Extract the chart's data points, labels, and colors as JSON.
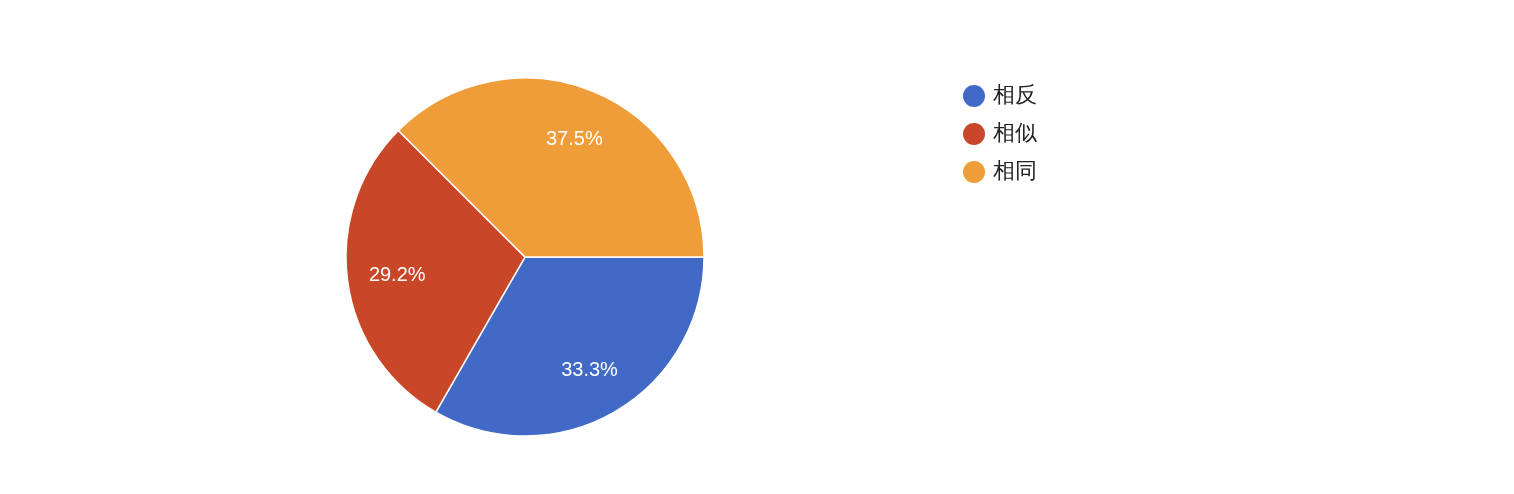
{
  "chart_data": {
    "type": "pie",
    "categories": [
      "相反",
      "相似",
      "相同"
    ],
    "values": [
      33.3,
      29.2,
      37.5
    ],
    "colors": [
      "#4169c6",
      "#c94729",
      "#ef9d39"
    ],
    "value_labels": [
      "33.3%",
      "29.2%",
      "37.5%"
    ],
    "legend": "right"
  }
}
